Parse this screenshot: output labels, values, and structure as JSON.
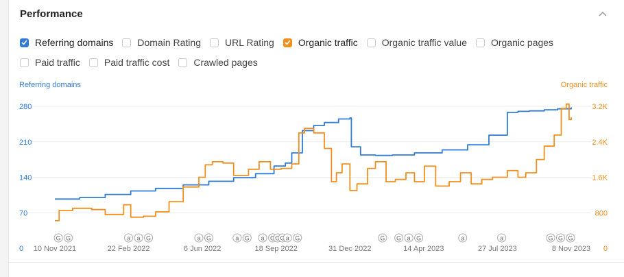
{
  "panel": {
    "title": "Performance"
  },
  "options": [
    [
      {
        "label": "Referring domains",
        "checked": true,
        "color": "#2f7bd6"
      },
      {
        "label": "Domain Rating",
        "checked": false
      },
      {
        "label": "URL Rating",
        "checked": false
      },
      {
        "label": "Organic traffic",
        "checked": true,
        "color": "#f28f1c"
      },
      {
        "label": "Organic traffic value",
        "checked": false
      },
      {
        "label": "Organic pages",
        "checked": false
      }
    ],
    [
      {
        "label": "Paid traffic",
        "checked": false
      },
      {
        "label": "Paid traffic cost",
        "checked": false
      },
      {
        "label": "Crawled pages",
        "checked": false
      }
    ]
  ],
  "chart_data": {
    "type": "line",
    "axis_title_left": "Referring domains",
    "axis_title_right": "Organic traffic",
    "colors": {
      "referring_domains": "#2f7bd6",
      "organic_traffic": "#f28f1c"
    },
    "left_ticks": [
      "280",
      "210",
      "140",
      "70",
      "0"
    ],
    "right_ticks": [
      "3.2K",
      "2.4K",
      "1.6K",
      "800",
      "0"
    ],
    "left_range": [
      0,
      280
    ],
    "right_range": [
      0,
      3200
    ],
    "x_range": [
      "2021-11-10",
      "2023-11-08"
    ],
    "x_tick_labels": [
      "10 Nov 2021",
      "22 Feb 2022",
      "6 Jun 2022",
      "18 Sep 2022",
      "31 Dec 2022",
      "14 Apr 2023",
      "27 Jul 2023",
      "8 Nov 2023"
    ],
    "x_tick_dates": [
      "2021-11-10",
      "2022-02-22",
      "2022-06-06",
      "2022-09-18",
      "2022-12-31",
      "2023-04-14",
      "2023-07-27",
      "2023-11-08"
    ],
    "annotations": [
      {
        "date": "2021-11-15",
        "letter": "G"
      },
      {
        "date": "2021-11-29",
        "letter": "G"
      },
      {
        "date": "2022-02-22",
        "letter": "a"
      },
      {
        "date": "2022-03-08",
        "letter": "a"
      },
      {
        "date": "2022-03-22",
        "letter": "G"
      },
      {
        "date": "2022-06-01",
        "letter": "a"
      },
      {
        "date": "2022-06-15",
        "letter": "G"
      },
      {
        "date": "2022-07-25",
        "letter": "a"
      },
      {
        "date": "2022-08-08",
        "letter": "G"
      },
      {
        "date": "2022-08-30",
        "letter": "a"
      },
      {
        "date": "2022-09-13",
        "letter": "G"
      },
      {
        "date": "2022-09-20",
        "letter": "G"
      },
      {
        "date": "2022-09-27",
        "letter": "G"
      },
      {
        "date": "2022-10-04",
        "letter": "a"
      },
      {
        "date": "2022-10-18",
        "letter": "G"
      },
      {
        "date": "2023-02-15",
        "letter": "G"
      },
      {
        "date": "2023-03-10",
        "letter": "G"
      },
      {
        "date": "2023-03-24",
        "letter": "a"
      },
      {
        "date": "2023-04-07",
        "letter": "G"
      },
      {
        "date": "2023-06-08",
        "letter": "a"
      },
      {
        "date": "2023-08-02",
        "letter": "a"
      },
      {
        "date": "2023-10-10",
        "letter": "G"
      },
      {
        "date": "2023-10-24",
        "letter": "G"
      },
      {
        "date": "2023-11-07",
        "letter": "G"
      }
    ],
    "series": [
      {
        "name": "Referring domains",
        "axis": "left",
        "x": [
          "2021-11-10",
          "2021-12-15",
          "2022-01-20",
          "2022-02-25",
          "2022-04-01",
          "2022-05-10",
          "2022-06-15",
          "2022-07-20",
          "2022-08-20",
          "2022-09-15",
          "2022-10-01",
          "2022-10-10",
          "2022-10-25",
          "2022-11-10",
          "2022-11-25",
          "2022-12-15",
          "2022-12-31",
          "2023-01-02",
          "2023-01-15",
          "2023-02-05",
          "2023-03-01",
          "2023-04-01",
          "2023-05-10",
          "2023-06-15",
          "2023-07-15",
          "2023-08-10",
          "2023-08-25",
          "2023-09-10",
          "2023-10-01",
          "2023-10-20",
          "2023-11-08"
        ],
        "values": [
          97,
          100,
          106,
          113,
          118,
          125,
          132,
          139,
          147,
          162,
          168,
          188,
          232,
          242,
          248,
          255,
          257,
          200,
          184,
          183,
          184,
          188,
          194,
          204,
          223,
          268,
          270,
          271,
          273,
          275,
          278
        ]
      },
      {
        "name": "Organic traffic",
        "axis": "right",
        "x": [
          "2021-11-10",
          "2021-11-16",
          "2021-12-05",
          "2022-01-01",
          "2022-01-20",
          "2022-02-01",
          "2022-02-15",
          "2022-02-25",
          "2022-03-15",
          "2022-04-01",
          "2022-04-20",
          "2022-05-10",
          "2022-06-01",
          "2022-06-10",
          "2022-06-20",
          "2022-07-05",
          "2022-07-20",
          "2022-08-10",
          "2022-08-25",
          "2022-09-10",
          "2022-09-25",
          "2022-10-10",
          "2022-10-20",
          "2022-10-28",
          "2022-11-10",
          "2022-11-25",
          "2022-12-05",
          "2022-12-12",
          "2022-12-20",
          "2022-12-31",
          "2023-01-10",
          "2023-01-25",
          "2023-02-05",
          "2023-02-20",
          "2023-03-05",
          "2023-03-20",
          "2023-04-01",
          "2023-04-15",
          "2023-05-01",
          "2023-05-20",
          "2023-06-05",
          "2023-06-20",
          "2023-07-05",
          "2023-07-20",
          "2023-08-10",
          "2023-08-25",
          "2023-09-05",
          "2023-09-20",
          "2023-10-01",
          "2023-10-15",
          "2023-10-25",
          "2023-11-01",
          "2023-11-05",
          "2023-11-08"
        ],
        "values": [
          620,
          850,
          900,
          870,
          760,
          760,
          980,
          700,
          720,
          820,
          1050,
          1380,
          1600,
          1880,
          1950,
          1920,
          1640,
          1780,
          1950,
          1780,
          1800,
          1900,
          2600,
          2700,
          2600,
          2250,
          1500,
          1700,
          1900,
          1300,
          1450,
          1800,
          1950,
          1500,
          1550,
          1700,
          1500,
          1850,
          1400,
          1500,
          1700,
          1450,
          1550,
          1600,
          1750,
          1600,
          1700,
          2000,
          2300,
          2550,
          3150,
          3250,
          2900,
          2950
        ]
      }
    ]
  }
}
